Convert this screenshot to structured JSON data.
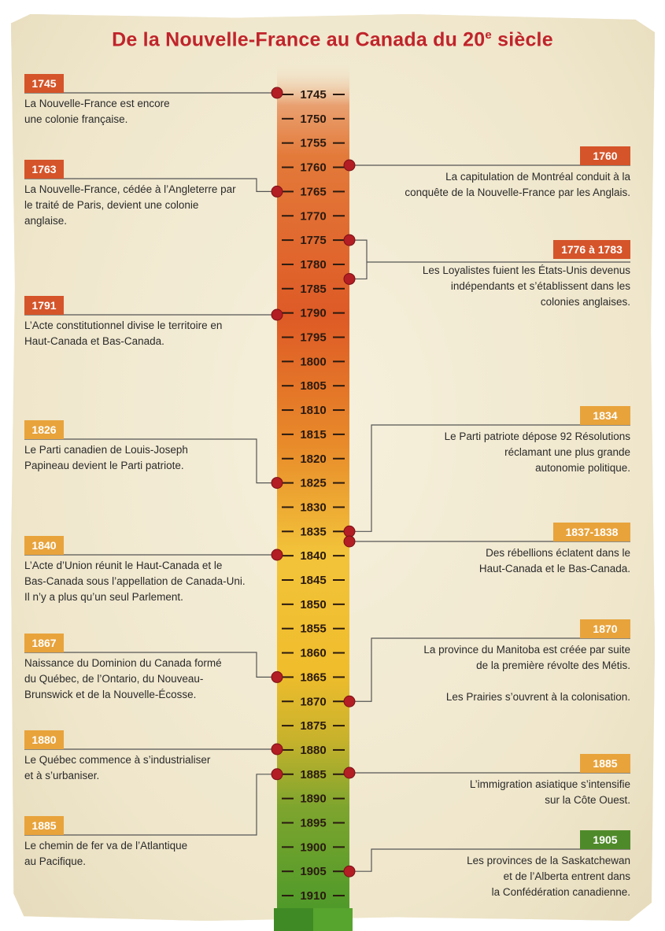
{
  "title": "De la Nouvelle-France au Canada du 20",
  "title_sup": "e",
  "title_end": " siècle",
  "colors": {
    "badge_dark": "#d5542a",
    "badge_light": "#e8a33b",
    "badge_green": "#4f8a2a",
    "dot": "#b31d24",
    "title": "#c0242b"
  },
  "timeline": {
    "start": 1745,
    "end": 1910,
    "step": 5
  },
  "events_left": [
    {
      "label": "1745",
      "text": "La Nouvelle-France est encore\nune colonie française.",
      "year": 1745
    },
    {
      "label": "1763",
      "text": "La Nouvelle-France, cédée à l’Angleterre par\nle traité de Paris, devient une colonie\nanglaise.",
      "year": 1765
    },
    {
      "label": "1791",
      "text": "L’Acte constitutionnel divise le territoire en\nHaut-Canada et Bas-Canada.",
      "year": 1790
    },
    {
      "label": "1826",
      "text": "Le Parti canadien de Louis-Joseph\nPapineau devient le Parti patriote.",
      "year": 1825
    },
    {
      "label": "1840",
      "text": "L’Acte d’Union réunit le Haut-Canada et le\nBas-Canada sous l’appellation de Canada-Uni.\nIl n’y a plus qu’un seul Parlement.",
      "year": 1840
    },
    {
      "label": "1867",
      "text": "Naissance du Dominion du Canada formé\ndu Québec, de l’Ontario, du Nouveau-\nBrunswick et de la Nouvelle-Écosse.",
      "year": 1865
    },
    {
      "label": "1880",
      "text": "Le Québec commence à s’industrialiser\net à s’urbaniser.",
      "year": 1880
    },
    {
      "label": "1885",
      "text": "Le chemin de fer va de l’Atlantique\nau Pacifique.",
      "year": 1885
    }
  ],
  "events_right": [
    {
      "label": "1760",
      "text": "La capitulation de Montréal conduit à la\nconquête de la Nouvelle-France par les Anglais.",
      "year": 1760
    },
    {
      "label": "1776 à 1783",
      "text": "Les Loyalistes fuient les États-Unis devenus\nindépendants et s’établissent dans les\ncolonies anglaises.",
      "year": 1775
    },
    {
      "label": "1834",
      "text": "Le Parti patriote dépose 92 Résolutions\nréclamant une plus grande\nautonomie politique.",
      "year": 1835
    },
    {
      "label": "1837-1838",
      "text": "Des rébellions éclatent dans le\nHaut-Canada et le Bas-Canada.",
      "year": 1837
    },
    {
      "label": "1870",
      "text": "La province du Manitoba est créée par suite\nde la première révolte des Métis.\n\nLes Prairies s’ouvrent à la colonisation.",
      "year": 1870
    },
    {
      "label": "1885",
      "text": "L’immigration asiatique s’intensifie\nsur la Côte Ouest.",
      "year": 1885
    },
    {
      "label": "1905",
      "text": "Les provinces de la Saskatchewan\net de l’Alberta entrent dans\nla Confédération canadienne.",
      "year": 1905
    }
  ]
}
